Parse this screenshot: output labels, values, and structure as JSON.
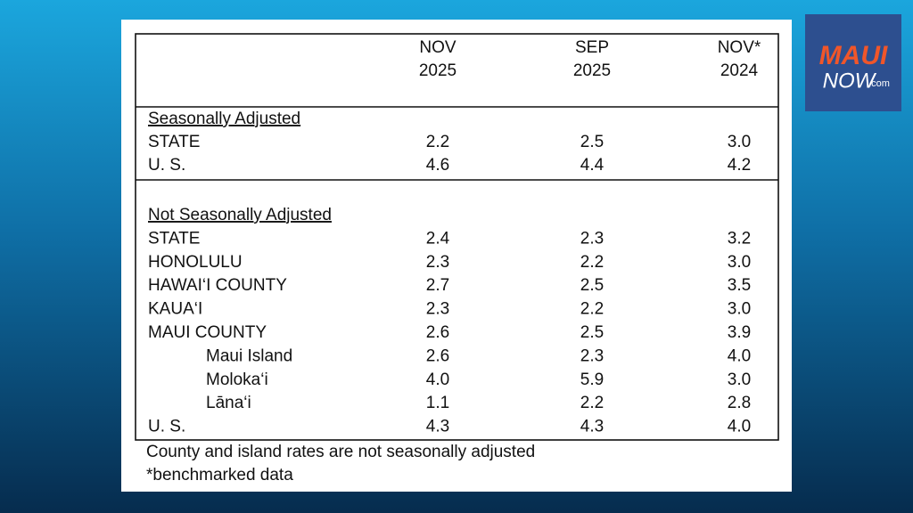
{
  "logo": {
    "brand_top": "MAUI",
    "brand_bottom": "NOW",
    "brand_suffix": ".com"
  },
  "table": {
    "columns": [
      [
        "NOV",
        "2025"
      ],
      [
        "SEP",
        "2025"
      ],
      [
        "NOV*",
        "2024"
      ]
    ],
    "sections": [
      {
        "title": "Seasonally Adjusted",
        "rows": [
          {
            "label": "STATE",
            "indent": false,
            "values": [
              "2.2",
              "2.5",
              "3.0"
            ]
          },
          {
            "label": "U. S.",
            "indent": false,
            "values": [
              "4.6",
              "4.4",
              "4.2"
            ]
          }
        ]
      },
      {
        "title": "Not Seasonally Adjusted",
        "rows": [
          {
            "label": "STATE",
            "indent": false,
            "values": [
              "2.4",
              "2.3",
              "3.2"
            ]
          },
          {
            "label": "HONOLULU",
            "indent": false,
            "values": [
              "2.3",
              "2.2",
              "3.0"
            ]
          },
          {
            "label": "HAWAI‘I COUNTY",
            "indent": false,
            "values": [
              "2.7",
              "2.5",
              "3.5"
            ]
          },
          {
            "label": "KAUA‘I",
            "indent": false,
            "values": [
              "2.3",
              "2.2",
              "3.0"
            ]
          },
          {
            "label": "MAUI COUNTY",
            "indent": false,
            "values": [
              "2.6",
              "2.5",
              "3.9"
            ]
          },
          {
            "label": "Maui Island",
            "indent": true,
            "values": [
              "2.6",
              "2.3",
              "4.0"
            ]
          },
          {
            "label": "Moloka‘i",
            "indent": true,
            "values": [
              "4.0",
              "5.9",
              "3.0"
            ]
          },
          {
            "label": "Lāna‘i",
            "indent": true,
            "values": [
              "1.1",
              "2.2",
              "2.8"
            ]
          },
          {
            "label": "U. S.",
            "indent": false,
            "values": [
              "4.3",
              "4.3",
              "4.0"
            ]
          }
        ]
      }
    ],
    "footnotes": [
      "County and island rates are not seasonally adjusted",
      "*benchmarked data"
    ]
  }
}
